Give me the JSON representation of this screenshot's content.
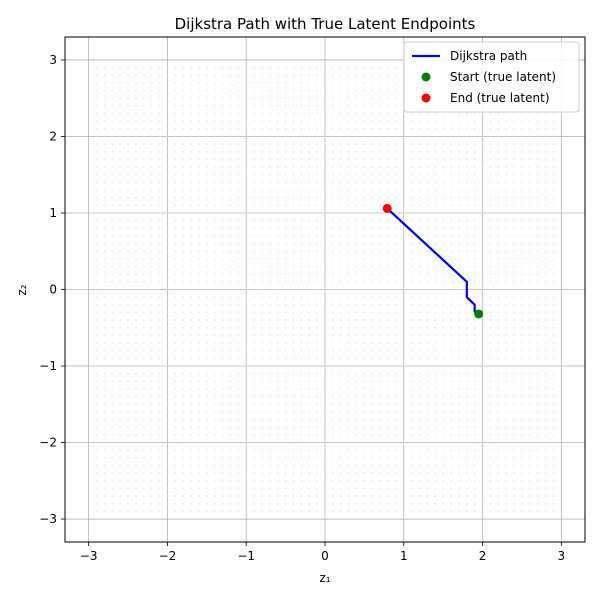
{
  "chart_data": {
    "type": "line",
    "title": "Dijkstra Path with True Latent Endpoints",
    "xlabel": "z₁",
    "ylabel": "z₂",
    "xlim": [
      -3.3,
      3.3
    ],
    "ylim": [
      -3.3,
      3.3
    ],
    "x_ticks": [
      -3,
      -2,
      -1,
      0,
      1,
      2,
      3
    ],
    "y_ticks": [
      -3,
      -2,
      -1,
      0,
      1,
      2,
      3
    ],
    "x_tick_labels": [
      "−3",
      "−2",
      "−1",
      "0",
      "1",
      "2",
      "3"
    ],
    "y_tick_labels": [
      "−3",
      "−2",
      "−1",
      "0",
      "1",
      "2",
      "3"
    ],
    "grid": true,
    "legend_position": "top-right",
    "background_grid_points": {
      "range": [
        -2.9,
        2.9
      ],
      "step": 0.1,
      "color": "#d9d9d9"
    },
    "series": [
      {
        "name": "Dijkstra path",
        "kind": "line",
        "color": "#0000ff",
        "points": [
          [
            1.9,
            -0.3
          ],
          [
            1.9,
            -0.2
          ],
          [
            1.8,
            -0.1
          ],
          [
            1.8,
            0.0
          ],
          [
            1.8,
            0.1
          ],
          [
            0.8,
            1.05
          ]
        ]
      },
      {
        "name": "Start (true latent)",
        "kind": "scatter",
        "color": "#008000",
        "points": [
          [
            1.95,
            -0.32
          ]
        ]
      },
      {
        "name": "End (true latent)",
        "kind": "scatter",
        "color": "#ff0000",
        "points": [
          [
            0.79,
            1.06
          ]
        ]
      }
    ]
  }
}
